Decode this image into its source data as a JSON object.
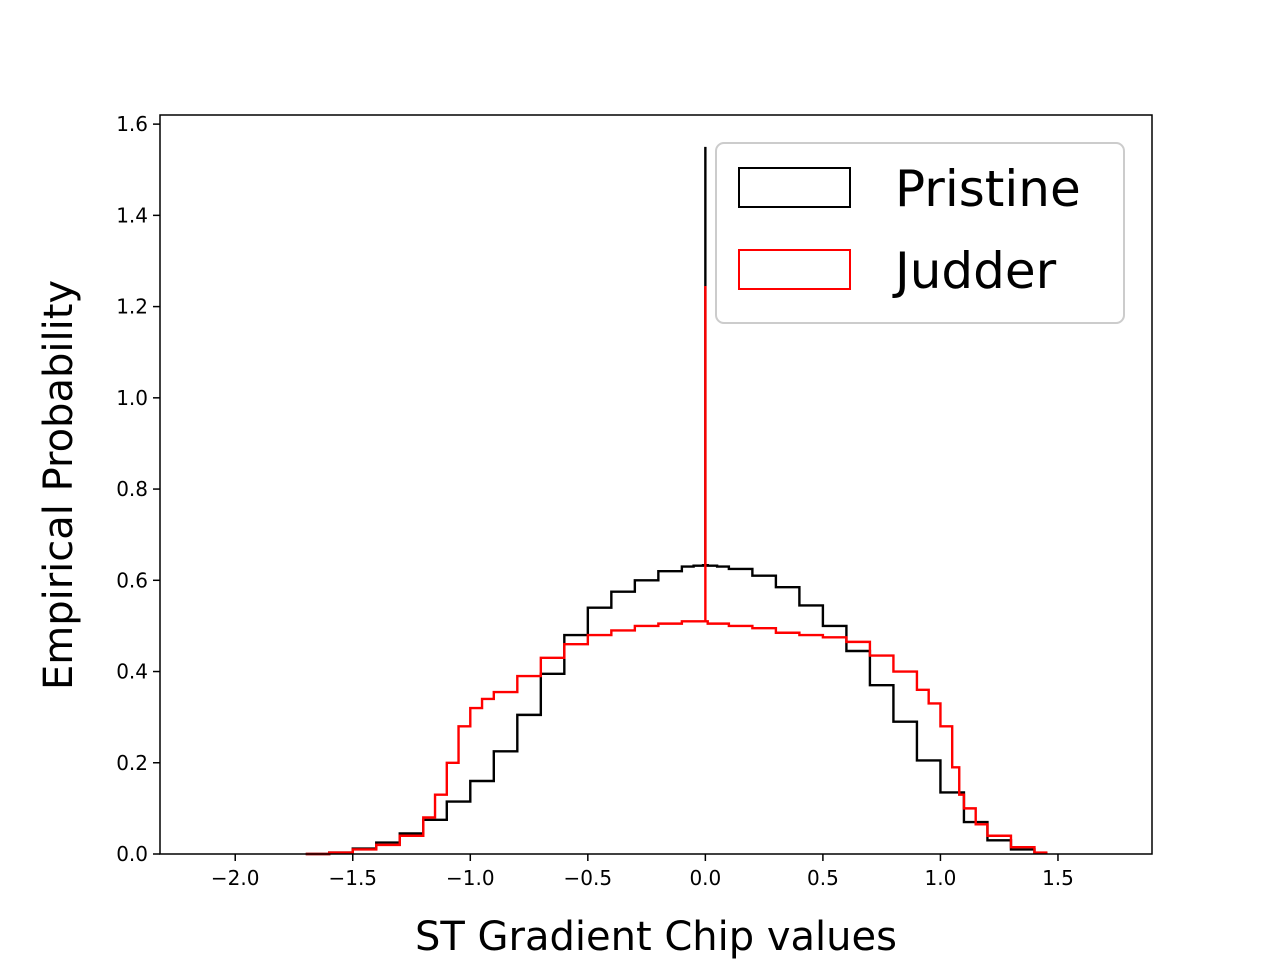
{
  "chart_data": {
    "type": "histogram-step",
    "title": "",
    "xlabel": "ST Gradient Chip values",
    "ylabel": "Empirical Probability",
    "xlim": [
      -2.32,
      1.9
    ],
    "ylim": [
      0.0,
      1.62
    ],
    "xticks": [
      -2.0,
      -1.5,
      -1.0,
      -0.5,
      0.0,
      0.5,
      1.0,
      1.5
    ],
    "xtick_labels": [
      "−2.0",
      "−1.5",
      "−1.0",
      "−0.5",
      "0.0",
      "0.5",
      "1.0",
      "1.5"
    ],
    "yticks": [
      0.0,
      0.2,
      0.4,
      0.6,
      0.8,
      1.0,
      1.2,
      1.4,
      1.6
    ],
    "ytick_labels": [
      "0.0",
      "0.2",
      "0.4",
      "0.6",
      "0.8",
      "1.0",
      "1.2",
      "1.4",
      "1.6"
    ],
    "grid": false,
    "legend_position": "top-right",
    "series": [
      {
        "name": "Pristine",
        "color": "#000000",
        "x": [
          -1.7,
          -1.6,
          -1.5,
          -1.4,
          -1.3,
          -1.2,
          -1.1,
          -1.0,
          -0.9,
          -0.8,
          -0.7,
          -0.6,
          -0.5,
          -0.4,
          -0.3,
          -0.2,
          -0.1,
          -0.05,
          -0.01,
          0.0,
          0.0,
          0.01,
          0.05,
          0.1,
          0.2,
          0.3,
          0.4,
          0.5,
          0.6,
          0.7,
          0.8,
          0.9,
          1.0,
          1.1,
          1.2,
          1.3,
          1.4,
          1.45
        ],
        "y": [
          0.0,
          0.003,
          0.012,
          0.025,
          0.045,
          0.075,
          0.115,
          0.16,
          0.225,
          0.305,
          0.395,
          0.48,
          0.54,
          0.575,
          0.6,
          0.62,
          0.63,
          0.632,
          0.633,
          1.55,
          0.633,
          0.632,
          0.63,
          0.625,
          0.61,
          0.585,
          0.545,
          0.5,
          0.445,
          0.37,
          0.29,
          0.205,
          0.135,
          0.07,
          0.03,
          0.01,
          0.002,
          0.0
        ]
      },
      {
        "name": "Judder",
        "color": "#ff0000",
        "x": [
          -1.7,
          -1.6,
          -1.5,
          -1.4,
          -1.3,
          -1.2,
          -1.15,
          -1.1,
          -1.05,
          -1.0,
          -0.95,
          -0.9,
          -0.8,
          -0.7,
          -0.6,
          -0.5,
          -0.4,
          -0.3,
          -0.2,
          -0.1,
          -0.01,
          0.0,
          0.0,
          0.01,
          0.1,
          0.2,
          0.3,
          0.4,
          0.5,
          0.6,
          0.7,
          0.8,
          0.9,
          0.95,
          1.0,
          1.05,
          1.08,
          1.1,
          1.15,
          1.2,
          1.3,
          1.4,
          1.45
        ],
        "y": [
          0.0,
          0.003,
          0.01,
          0.02,
          0.04,
          0.08,
          0.13,
          0.2,
          0.28,
          0.32,
          0.34,
          0.355,
          0.39,
          0.43,
          0.46,
          0.48,
          0.49,
          0.5,
          0.505,
          0.51,
          0.51,
          1.245,
          0.51,
          0.505,
          0.5,
          0.495,
          0.485,
          0.48,
          0.475,
          0.465,
          0.435,
          0.4,
          0.36,
          0.33,
          0.28,
          0.19,
          0.13,
          0.1,
          0.065,
          0.04,
          0.015,
          0.003,
          0.0
        ]
      }
    ]
  }
}
